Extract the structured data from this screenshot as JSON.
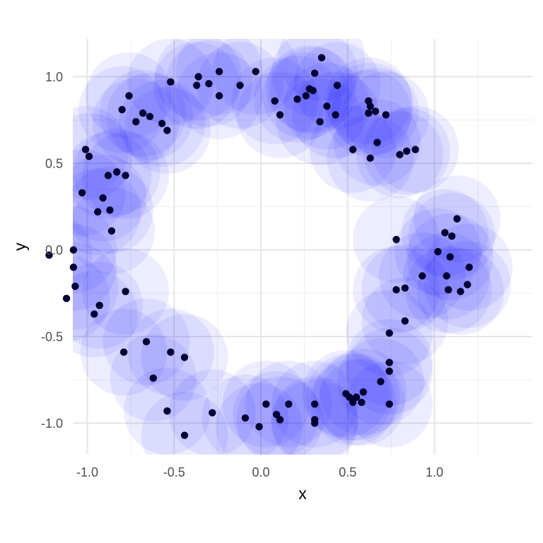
{
  "chart_data": {
    "type": "scatter",
    "title": "",
    "xlabel": "x",
    "ylabel": "y",
    "xlim": [
      -1.25,
      1.33
    ],
    "ylim": [
      -1.18,
      1.22
    ],
    "x_ticks": [
      -1.0,
      -0.5,
      0.0,
      0.5,
      1.0
    ],
    "x_tick_labels": [
      "-1.0",
      "-0.5",
      "0.0",
      "0.5",
      "1.0"
    ],
    "y_ticks": [
      -1.0,
      -0.5,
      0.0,
      0.5,
      1.0
    ],
    "y_tick_labels": [
      "-1.0",
      "-0.5",
      "0.0",
      "0.5",
      "1.0"
    ],
    "grid": true,
    "point_color": "#000033",
    "halo_color": "#0000ff",
    "halo_opacity": 0.07,
    "halo_radius": 0.25,
    "background": "#ffffff",
    "points": [
      {
        "x": -1.22,
        "y": -0.03
      },
      {
        "x": -1.08,
        "y": 0.0
      },
      {
        "x": -1.08,
        "y": -0.1
      },
      {
        "x": -1.07,
        "y": -0.21
      },
      {
        "x": -1.12,
        "y": -0.28
      },
      {
        "x": -0.96,
        "y": -0.37
      },
      {
        "x": -0.93,
        "y": -0.32
      },
      {
        "x": -0.78,
        "y": -0.24
      },
      {
        "x": -0.79,
        "y": -0.59
      },
      {
        "x": -0.66,
        "y": -0.53
      },
      {
        "x": -0.62,
        "y": -0.74
      },
      {
        "x": -0.52,
        "y": -0.59
      },
      {
        "x": -0.44,
        "y": -0.62
      },
      {
        "x": -0.54,
        "y": -0.93
      },
      {
        "x": -0.44,
        "y": -1.07
      },
      {
        "x": -0.28,
        "y": -0.94
      },
      {
        "x": -0.09,
        "y": -0.97
      },
      {
        "x": -0.01,
        "y": -1.02
      },
      {
        "x": 0.03,
        "y": -0.89
      },
      {
        "x": 0.09,
        "y": -0.95
      },
      {
        "x": 0.11,
        "y": -0.98
      },
      {
        "x": 0.16,
        "y": -0.89
      },
      {
        "x": 0.31,
        "y": -0.89
      },
      {
        "x": 0.31,
        "y": -0.98
      },
      {
        "x": 0.31,
        "y": -1.0
      },
      {
        "x": 0.49,
        "y": -0.83
      },
      {
        "x": 0.51,
        "y": -0.85
      },
      {
        "x": 0.53,
        "y": -0.88
      },
      {
        "x": 0.55,
        "y": -0.85
      },
      {
        "x": 0.59,
        "y": -0.82
      },
      {
        "x": 0.58,
        "y": -0.88
      },
      {
        "x": 0.69,
        "y": -0.76
      },
      {
        "x": 0.74,
        "y": -0.7
      },
      {
        "x": 0.74,
        "y": -0.65
      },
      {
        "x": 0.74,
        "y": -0.89
      },
      {
        "x": 0.74,
        "y": -0.48
      },
      {
        "x": 0.83,
        "y": -0.41
      },
      {
        "x": 0.78,
        "y": -0.23
      },
      {
        "x": 0.83,
        "y": -0.22
      },
      {
        "x": 0.78,
        "y": 0.06
      },
      {
        "x": 0.93,
        "y": -0.15
      },
      {
        "x": 1.02,
        "y": -0.01
      },
      {
        "x": 1.06,
        "y": 0.1
      },
      {
        "x": 1.09,
        "y": -0.04
      },
      {
        "x": 1.1,
        "y": 0.08
      },
      {
        "x": 1.13,
        "y": 0.18
      },
      {
        "x": 1.07,
        "y": -0.15
      },
      {
        "x": 1.08,
        "y": -0.23
      },
      {
        "x": 1.15,
        "y": -0.24
      },
      {
        "x": 1.19,
        "y": -0.2
      },
      {
        "x": 1.2,
        "y": -0.1
      },
      {
        "x": 0.89,
        "y": 0.58
      },
      {
        "x": 0.84,
        "y": 0.57
      },
      {
        "x": 0.8,
        "y": 0.55
      },
      {
        "x": 0.67,
        "y": 0.62
      },
      {
        "x": 0.63,
        "y": 0.53
      },
      {
        "x": 0.53,
        "y": 0.58
      },
      {
        "x": 0.72,
        "y": 0.78
      },
      {
        "x": 0.66,
        "y": 0.8
      },
      {
        "x": 0.62,
        "y": 0.79
      },
      {
        "x": 0.63,
        "y": 0.83
      },
      {
        "x": 0.62,
        "y": 0.86
      },
      {
        "x": 0.43,
        "y": 0.78
      },
      {
        "x": 0.38,
        "y": 0.83
      },
      {
        "x": 0.34,
        "y": 0.74
      },
      {
        "x": 0.44,
        "y": 0.95
      },
      {
        "x": 0.35,
        "y": 1.11
      },
      {
        "x": 0.31,
        "y": 1.02
      },
      {
        "x": 0.3,
        "y": 0.92
      },
      {
        "x": 0.28,
        "y": 0.93
      },
      {
        "x": 0.26,
        "y": 0.89
      },
      {
        "x": 0.21,
        "y": 0.87
      },
      {
        "x": 0.08,
        "y": 0.86
      },
      {
        "x": 0.11,
        "y": 0.78
      },
      {
        "x": -0.03,
        "y": 1.03
      },
      {
        "x": -0.12,
        "y": 0.95
      },
      {
        "x": -0.24,
        "y": 1.03
      },
      {
        "x": -0.24,
        "y": 0.89
      },
      {
        "x": -0.3,
        "y": 0.96
      },
      {
        "x": -0.36,
        "y": 1.0
      },
      {
        "x": -0.37,
        "y": 0.95
      },
      {
        "x": -0.52,
        "y": 0.97
      },
      {
        "x": -0.54,
        "y": 0.69
      },
      {
        "x": -0.57,
        "y": 0.73
      },
      {
        "x": -0.64,
        "y": 0.77
      },
      {
        "x": -0.68,
        "y": 0.79
      },
      {
        "x": -0.72,
        "y": 0.74
      },
      {
        "x": -0.76,
        "y": 0.89
      },
      {
        "x": -0.8,
        "y": 0.81
      },
      {
        "x": -1.01,
        "y": 0.58
      },
      {
        "x": -0.99,
        "y": 0.54
      },
      {
        "x": -0.78,
        "y": 0.43
      },
      {
        "x": -0.83,
        "y": 0.45
      },
      {
        "x": -0.88,
        "y": 0.43
      },
      {
        "x": -1.03,
        "y": 0.33
      },
      {
        "x": -0.91,
        "y": 0.3
      },
      {
        "x": -0.87,
        "y": 0.23
      },
      {
        "x": -0.94,
        "y": 0.22
      },
      {
        "x": -0.86,
        "y": 0.11
      }
    ]
  }
}
